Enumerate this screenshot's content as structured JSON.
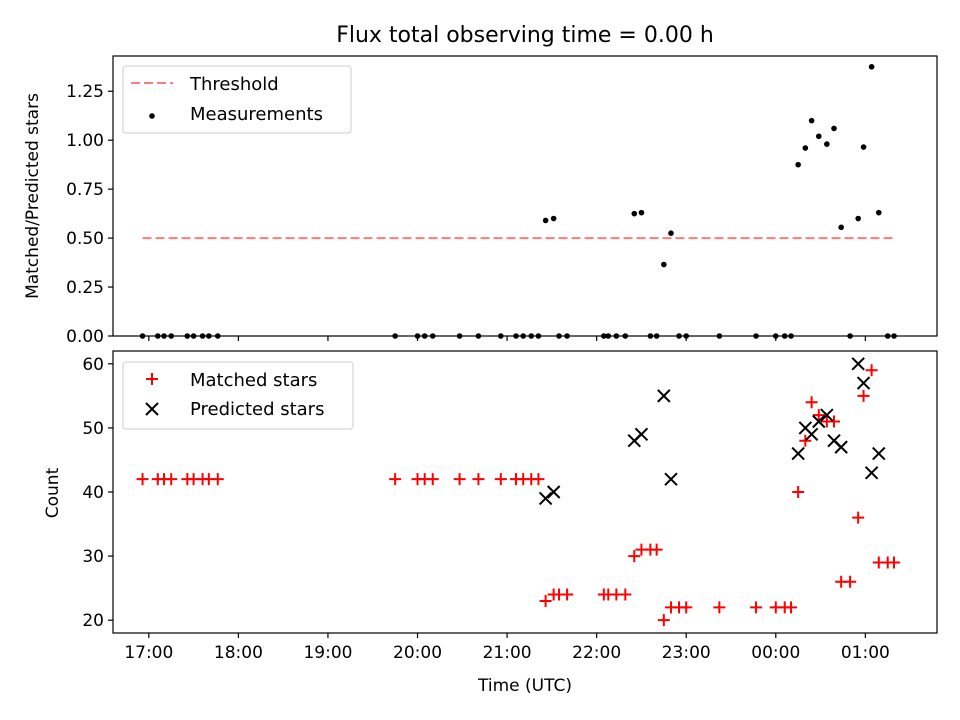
{
  "figure": {
    "title": "Flux total observing time = 0.00 h"
  },
  "chart_data": [
    {
      "type": "scatter",
      "panel": "top",
      "ylabel": "Matched/Predicted stars",
      "xlim_hours": [
        16.6,
        25.8
      ],
      "ylim": [
        0.0,
        1.43
      ],
      "yticks": [
        0.0,
        0.25,
        0.5,
        0.75,
        1.0,
        1.25
      ],
      "ytick_labels": [
        "0.00",
        "0.25",
        "0.50",
        "0.75",
        "1.00",
        "1.25"
      ],
      "grid": false,
      "legend": {
        "placement": "top-left",
        "entries": [
          "Threshold",
          "Measurements"
        ]
      },
      "threshold": {
        "name": "Threshold",
        "value": 0.5,
        "x_range": [
          16.93,
          25.33
        ],
        "color": "#ff7b7b",
        "style": "dashed"
      },
      "series": [
        {
          "name": "Measurements",
          "marker": "dot",
          "color": "#000000",
          "points": [
            [
              16.93,
              0.0
            ],
            [
              17.1,
              0.0
            ],
            [
              17.17,
              0.0
            ],
            [
              17.25,
              0.0
            ],
            [
              17.43,
              0.0
            ],
            [
              17.5,
              0.0
            ],
            [
              17.6,
              0.0
            ],
            [
              17.67,
              0.0
            ],
            [
              17.77,
              0.0
            ],
            [
              19.75,
              0.0
            ],
            [
              20.0,
              0.0
            ],
            [
              20.08,
              0.0
            ],
            [
              20.17,
              0.0
            ],
            [
              20.47,
              0.0
            ],
            [
              20.68,
              0.0
            ],
            [
              20.93,
              0.0
            ],
            [
              21.1,
              0.0
            ],
            [
              21.18,
              0.0
            ],
            [
              21.27,
              0.0
            ],
            [
              21.35,
              0.0
            ],
            [
              21.43,
              0.59
            ],
            [
              21.52,
              0.6
            ],
            [
              21.58,
              0.0
            ],
            [
              21.67,
              0.0
            ],
            [
              22.08,
              0.0
            ],
            [
              22.13,
              0.0
            ],
            [
              22.22,
              0.0
            ],
            [
              22.32,
              0.0
            ],
            [
              22.42,
              0.625
            ],
            [
              22.5,
              0.63
            ],
            [
              22.6,
              0.0
            ],
            [
              22.67,
              0.0
            ],
            [
              22.75,
              0.365
            ],
            [
              22.83,
              0.525
            ],
            [
              22.92,
              0.0
            ],
            [
              23.0,
              0.0
            ],
            [
              23.37,
              0.0
            ],
            [
              23.78,
              0.0
            ],
            [
              24.0,
              0.0
            ],
            [
              24.1,
              0.0
            ],
            [
              24.17,
              0.0
            ],
            [
              24.25,
              0.875
            ],
            [
              24.33,
              0.96
            ],
            [
              24.4,
              1.1
            ],
            [
              24.48,
              1.02
            ],
            [
              24.57,
              0.98
            ],
            [
              24.65,
              1.06
            ],
            [
              24.73,
              0.555
            ],
            [
              24.83,
              0.0
            ],
            [
              24.92,
              0.6
            ],
            [
              24.98,
              0.965
            ],
            [
              25.07,
              1.375
            ],
            [
              25.15,
              0.63
            ],
            [
              25.25,
              0.0
            ],
            [
              25.32,
              0.0
            ]
          ]
        }
      ]
    },
    {
      "type": "scatter",
      "panel": "bottom",
      "xlabel": "Time (UTC)",
      "ylabel": "Count",
      "xlim_hours": [
        16.6,
        25.8
      ],
      "xticks_hours": [
        17,
        18,
        19,
        20,
        21,
        22,
        23,
        24,
        25
      ],
      "xtick_labels": [
        "17:00",
        "18:00",
        "19:00",
        "20:00",
        "21:00",
        "22:00",
        "23:00",
        "00:00",
        "01:00"
      ],
      "ylim": [
        18.0,
        62.0
      ],
      "yticks": [
        20,
        30,
        40,
        50,
        60
      ],
      "ytick_labels": [
        "20",
        "30",
        "40",
        "50",
        "60"
      ],
      "grid": false,
      "legend": {
        "placement": "top-left",
        "entries": [
          "Matched stars",
          "Predicted stars"
        ]
      },
      "series": [
        {
          "name": "Matched stars",
          "marker": "plus",
          "color": "#ff0000",
          "points": [
            [
              16.93,
              42
            ],
            [
              17.1,
              42
            ],
            [
              17.17,
              42
            ],
            [
              17.25,
              42
            ],
            [
              17.43,
              42
            ],
            [
              17.5,
              42
            ],
            [
              17.6,
              42
            ],
            [
              17.67,
              42
            ],
            [
              17.77,
              42
            ],
            [
              19.75,
              42
            ],
            [
              20.0,
              42
            ],
            [
              20.08,
              42
            ],
            [
              20.17,
              42
            ],
            [
              20.47,
              42
            ],
            [
              20.68,
              42
            ],
            [
              20.93,
              42
            ],
            [
              21.1,
              42
            ],
            [
              21.18,
              42
            ],
            [
              21.27,
              42
            ],
            [
              21.35,
              42
            ],
            [
              21.43,
              23
            ],
            [
              21.52,
              24
            ],
            [
              21.58,
              24
            ],
            [
              21.67,
              24
            ],
            [
              22.08,
              24
            ],
            [
              22.13,
              24
            ],
            [
              22.22,
              24
            ],
            [
              22.32,
              24
            ],
            [
              22.42,
              30
            ],
            [
              22.5,
              31
            ],
            [
              22.6,
              31
            ],
            [
              22.67,
              31
            ],
            [
              22.75,
              20
            ],
            [
              22.83,
              22
            ],
            [
              22.92,
              22
            ],
            [
              23.0,
              22
            ],
            [
              23.37,
              22
            ],
            [
              23.78,
              22
            ],
            [
              24.0,
              22
            ],
            [
              24.1,
              22
            ],
            [
              24.17,
              22
            ],
            [
              24.25,
              40
            ],
            [
              24.33,
              48
            ],
            [
              24.4,
              54
            ],
            [
              24.48,
              52
            ],
            [
              24.57,
              51
            ],
            [
              24.65,
              51
            ],
            [
              24.73,
              26
            ],
            [
              24.83,
              26
            ],
            [
              24.92,
              36
            ],
            [
              24.98,
              55
            ],
            [
              25.07,
              59
            ],
            [
              25.15,
              29
            ],
            [
              25.25,
              29
            ],
            [
              25.32,
              29
            ]
          ]
        },
        {
          "name": "Predicted stars",
          "marker": "cross",
          "color": "#000000",
          "points": [
            [
              21.43,
              39
            ],
            [
              21.52,
              40
            ],
            [
              22.42,
              48
            ],
            [
              22.5,
              49
            ],
            [
              22.75,
              55
            ],
            [
              22.83,
              42
            ],
            [
              24.25,
              46
            ],
            [
              24.33,
              50
            ],
            [
              24.4,
              49
            ],
            [
              24.48,
              51
            ],
            [
              24.57,
              52
            ],
            [
              24.65,
              48
            ],
            [
              24.73,
              47
            ],
            [
              24.92,
              60
            ],
            [
              24.98,
              57
            ],
            [
              25.07,
              43
            ],
            [
              25.15,
              46
            ]
          ]
        }
      ]
    }
  ]
}
